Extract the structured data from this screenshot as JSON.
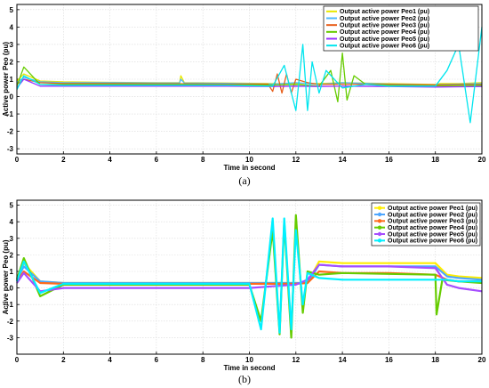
{
  "chart_data": [
    {
      "type": "line",
      "caption": "(a)",
      "xlabel": "Time in second",
      "ylabel": "Active power Peo (pu)",
      "xlim": [
        0,
        20
      ],
      "ylim": [
        -3.3,
        5.3
      ],
      "xticks": [
        0,
        2,
        4,
        6,
        8,
        10,
        12,
        14,
        16,
        18,
        20
      ],
      "yticks": [
        -3,
        -2,
        -1,
        0,
        1,
        2,
        3,
        4,
        5
      ],
      "grid": true,
      "legend_position": "top-right",
      "series": [
        {
          "name": "Output active power   Peo1 (pu)",
          "color": "#e8e800",
          "x": [
            0,
            0.3,
            1,
            2,
            4,
            6,
            7,
            7.05,
            7.2,
            9,
            11,
            12,
            13,
            14,
            16,
            18,
            18.2,
            19,
            20
          ],
          "y": [
            0.9,
            1.3,
            0.9,
            0.85,
            0.82,
            0.8,
            0.8,
            1.2,
            0.8,
            0.78,
            0.75,
            0.75,
            0.75,
            0.8,
            0.75,
            0.7,
            0.75,
            0.75,
            0.8
          ]
        },
        {
          "name": "Output active power   Peo2 (pu)",
          "color": "#4db8ff",
          "x": [
            0,
            0.3,
            1,
            2,
            4,
            6,
            7,
            7.05,
            7.2,
            9,
            11,
            12,
            13,
            14,
            16,
            18,
            18.2,
            19,
            20
          ],
          "y": [
            0.8,
            1.1,
            0.85,
            0.8,
            0.8,
            0.78,
            0.78,
            1.0,
            0.78,
            0.76,
            0.72,
            0.8,
            0.7,
            0.8,
            0.72,
            0.68,
            0.7,
            0.72,
            0.75
          ]
        },
        {
          "name": "Output active power   Peo3 (pu)",
          "color": "#e8601c",
          "x": [
            0,
            0.3,
            1,
            2,
            4,
            6,
            7,
            9,
            10.8,
            11,
            11.2,
            11.4,
            11.6,
            11.8,
            12,
            12.5,
            13,
            14,
            16,
            18,
            20
          ],
          "y": [
            0.7,
            1.0,
            0.8,
            0.75,
            0.75,
            0.74,
            0.74,
            0.72,
            0.72,
            0.3,
            1.3,
            0.2,
            1.3,
            0.2,
            1.0,
            0.8,
            0.7,
            0.72,
            0.7,
            0.68,
            0.7
          ]
        },
        {
          "name": "Output active power   Peo4 (pu)",
          "color": "#66cc00",
          "x": [
            0,
            0.3,
            1,
            2,
            4,
            6,
            7,
            9,
            11,
            12,
            13,
            13.5,
            13.8,
            14,
            14.2,
            14.5,
            15,
            16,
            18,
            20
          ],
          "y": [
            0.6,
            1.7,
            0.7,
            0.7,
            0.7,
            0.7,
            0.7,
            0.68,
            0.66,
            0.7,
            0.6,
            1.5,
            -0.3,
            2.5,
            -0.2,
            1.2,
            0.7,
            0.65,
            0.62,
            0.65
          ]
        },
        {
          "name": "Output active power   Peo5 (pu)",
          "color": "#9933ff",
          "x": [
            0,
            0.3,
            1,
            2,
            4,
            6,
            7,
            9,
            11,
            12,
            13,
            14,
            16,
            18,
            20
          ],
          "y": [
            0.5,
            1.0,
            0.6,
            0.6,
            0.6,
            0.6,
            0.6,
            0.6,
            0.58,
            0.6,
            0.58,
            0.6,
            0.58,
            0.55,
            0.58
          ]
        },
        {
          "name": "Output active power   Peo6 (pu)",
          "color": "#00e5ee",
          "x": [
            0,
            0.3,
            1,
            2,
            4,
            6,
            7,
            9,
            11,
            11.5,
            12,
            12.3,
            12.5,
            12.7,
            13,
            13.3,
            14,
            15,
            16,
            18,
            18.5,
            19,
            19.5,
            20
          ],
          "y": [
            0.4,
            1.2,
            0.7,
            0.65,
            0.65,
            0.65,
            0.65,
            0.65,
            0.6,
            1.8,
            -0.8,
            3.0,
            -0.8,
            2.0,
            0.2,
            1.5,
            0.5,
            0.7,
            0.6,
            0.6,
            1.5,
            3.0,
            -1.5,
            4.0
          ]
        }
      ]
    },
    {
      "type": "line",
      "caption": "(b)",
      "xlabel": "Time in second",
      "ylabel": "Active power Peo (pu)",
      "xlim": [
        0,
        20
      ],
      "ylim": [
        -4,
        5.3
      ],
      "xticks": [
        0,
        2,
        4,
        6,
        8,
        10,
        12,
        14,
        16,
        18,
        20
      ],
      "yticks": [
        -3,
        -2,
        -1,
        0,
        1,
        2,
        3,
        4,
        5
      ],
      "grid": true,
      "legend_position": "top-right",
      "series": [
        {
          "name": "Output active power   Peo1 (pu)",
          "color": "#ffee00",
          "x": [
            0,
            0.3,
            1,
            2,
            4,
            6,
            7,
            8,
            10,
            11,
            12,
            12.5,
            13,
            14,
            16,
            18,
            18.5,
            19,
            20
          ],
          "y": [
            0.6,
            1.5,
            0.4,
            0.3,
            0.3,
            0.3,
            0.3,
            0.3,
            0.3,
            0.3,
            0.3,
            0.3,
            1.6,
            1.5,
            1.5,
            1.5,
            0.8,
            0.7,
            0.6
          ]
        },
        {
          "name": "Output active power   Peo2 (pu)",
          "color": "#4da6ff",
          "x": [
            0,
            0.3,
            1,
            2,
            4,
            6,
            7,
            8,
            10,
            11,
            12,
            12.5,
            13,
            14,
            16,
            18,
            18.5,
            19,
            20
          ],
          "y": [
            0.5,
            1.3,
            0.4,
            0.3,
            0.3,
            0.3,
            0.3,
            0.3,
            0.3,
            0.3,
            0.3,
            0.3,
            1.4,
            1.3,
            1.3,
            1.3,
            0.7,
            0.6,
            0.5
          ]
        },
        {
          "name": "Output active power   Peo3 (pu)",
          "color": "#ff6a1a",
          "x": [
            0,
            0.3,
            1,
            2,
            4,
            6,
            7,
            8,
            10,
            11,
            12,
            12.5,
            13,
            14,
            16,
            18,
            18.5,
            19,
            20
          ],
          "y": [
            0.4,
            1.0,
            0.3,
            0.25,
            0.25,
            0.25,
            0.25,
            0.25,
            0.25,
            0.25,
            0.25,
            0.3,
            1.0,
            0.9,
            0.9,
            0.8,
            0.5,
            0.4,
            0.4
          ]
        },
        {
          "name": "Output active power   Peo4 (pu)",
          "color": "#66cc00",
          "x": [
            0,
            0.3,
            1,
            2,
            4,
            6,
            7,
            8,
            10,
            10.5,
            11,
            11.3,
            11.5,
            11.8,
            12,
            12.3,
            12.5,
            13,
            14,
            16,
            18,
            18.05,
            18.3,
            19,
            20
          ],
          "y": [
            0.5,
            1.8,
            -0.5,
            0.2,
            0.2,
            0.2,
            0.2,
            0.2,
            0.2,
            -2.0,
            3.5,
            -2.8,
            4.0,
            -3.0,
            4.4,
            -1.5,
            1.0,
            0.8,
            0.9,
            0.85,
            0.8,
            -1.6,
            0.5,
            0.4,
            0.3
          ]
        },
        {
          "name": "Output active power   Peo5 (pu)",
          "color": "#a64dff",
          "x": [
            0,
            0.3,
            1,
            2,
            4,
            6,
            7,
            8,
            10,
            11,
            12,
            12.5,
            13,
            14,
            16,
            18,
            18.5,
            19,
            20
          ],
          "y": [
            0.3,
            0.9,
            -0.2,
            0.0,
            0.0,
            0.0,
            0.0,
            0.0,
            0.0,
            0.1,
            0.2,
            0.5,
            1.4,
            1.3,
            1.3,
            1.2,
            0.2,
            0.0,
            -0.2
          ]
        },
        {
          "name": "Output active power   Peo6 (pu)",
          "color": "#00f0ff",
          "x": [
            0,
            0.3,
            1,
            2,
            4,
            6,
            7,
            8,
            10,
            10.5,
            11,
            11.3,
            11.5,
            11.8,
            12,
            12.3,
            12.5,
            13,
            14,
            16,
            18,
            18.5,
            19,
            20
          ],
          "y": [
            0.4,
            1.6,
            -0.3,
            0.25,
            0.25,
            0.25,
            0.25,
            0.25,
            0.25,
            -2.5,
            4.2,
            -2.7,
            4.2,
            -2.5,
            3.5,
            -1.0,
            0.9,
            0.6,
            0.5,
            0.5,
            0.5,
            0.5,
            0.4,
            0.4
          ]
        }
      ]
    }
  ]
}
